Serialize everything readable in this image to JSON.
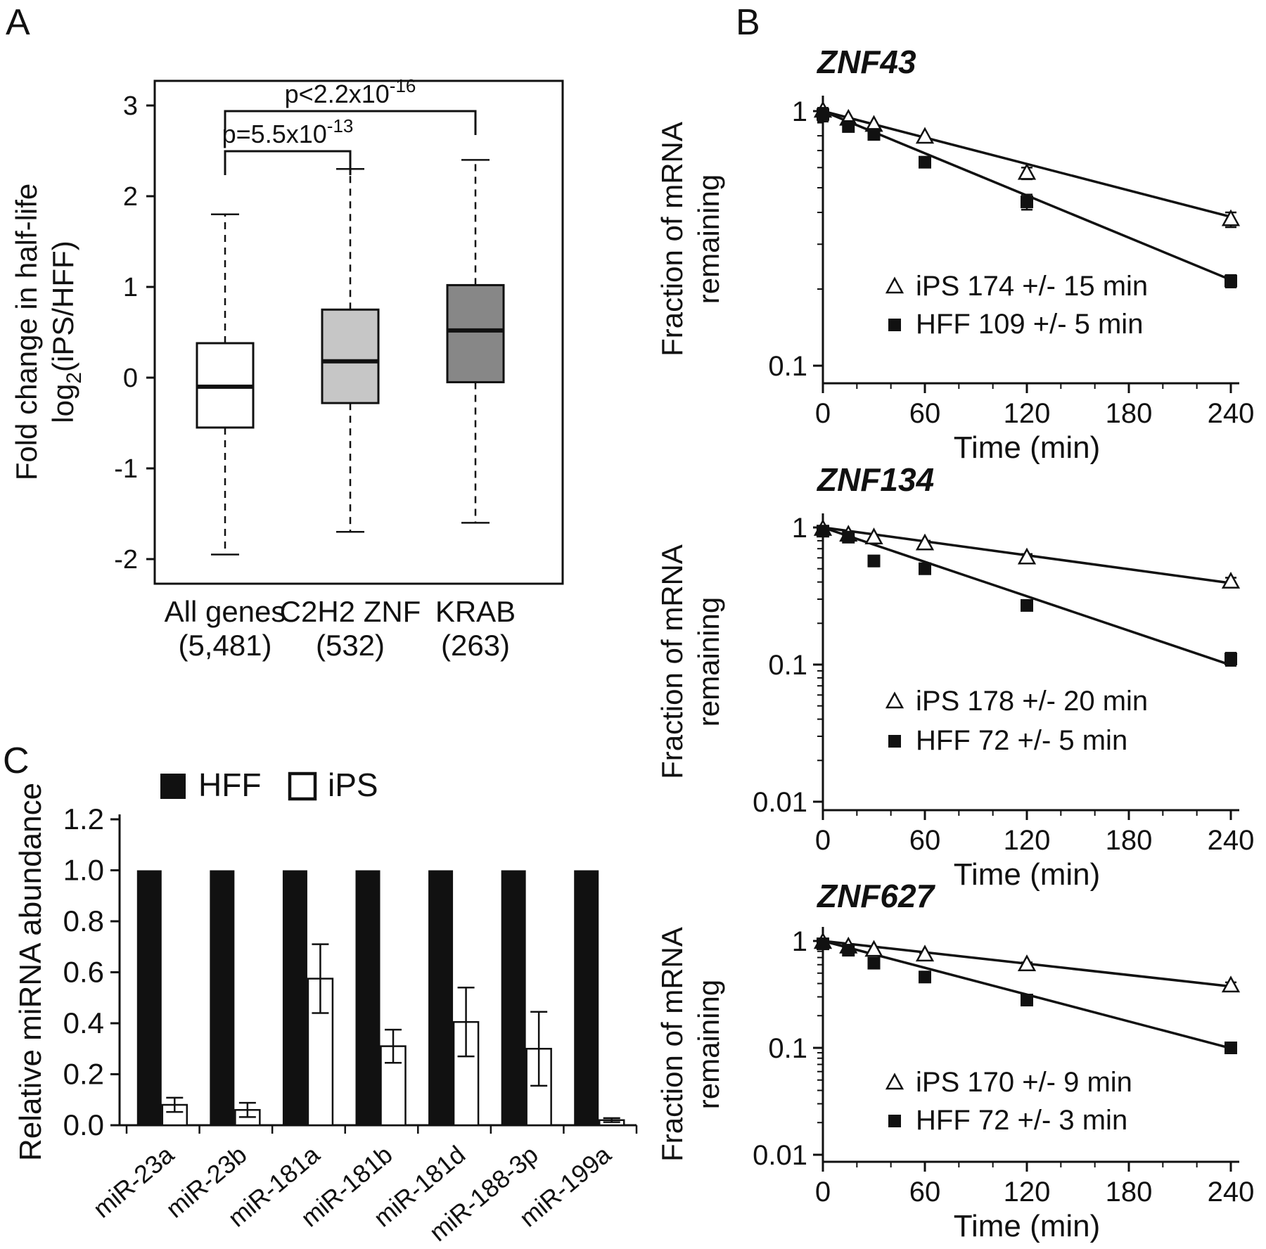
{
  "figure": {
    "background": "#ffffff",
    "line_color": "#111111"
  },
  "panels": {
    "a": {
      "label": "A"
    },
    "b": {
      "label": "B"
    },
    "c": {
      "label": "C"
    }
  },
  "chart_data": [
    {
      "panel": "A",
      "type": "boxplot",
      "ylabel_line1": "Fold change in half-life",
      "ylabel_line2_parts": [
        {
          "t": "log"
        },
        {
          "t": "2",
          "sub": true
        },
        {
          "t": "(iPS/HFF)"
        }
      ],
      "ylim": [
        -2.3,
        3.3
      ],
      "yticks": [
        3,
        2,
        1,
        0,
        -1,
        -2
      ],
      "groups": [
        {
          "label": "All genes",
          "n_label": "(5,481)",
          "whisker_low": -1.95,
          "q1": -0.55,
          "median": -0.1,
          "q3": 0.38,
          "whisker_high": 1.8,
          "fill": "#ffffff"
        },
        {
          "label": "C2H2 ZNF",
          "n_label": "(532)",
          "whisker_low": -1.7,
          "q1": -0.28,
          "median": 0.18,
          "q3": 0.75,
          "whisker_high": 2.3,
          "fill": "#c6c6c6"
        },
        {
          "label": "KRAB",
          "n_label": "(263)",
          "whisker_low": -1.6,
          "q1": -0.05,
          "median": 0.52,
          "q3": 1.02,
          "whisker_high": 2.4,
          "fill": "#878787"
        }
      ],
      "brackets": [
        {
          "from": 0,
          "to": 1,
          "label_parts": [
            {
              "t": "p=5.5x10"
            },
            {
              "t": "-13",
              "sup": true
            }
          ]
        },
        {
          "from": 0,
          "to": 2,
          "label_parts": [
            {
              "t": "p<2.2x10"
            },
            {
              "t": "-16",
              "sup": true
            }
          ]
        }
      ]
    },
    {
      "panel": "B",
      "type": "line",
      "yscale": "log",
      "title": "ZNF43",
      "ylabel_line1": "Fraction of mRNA",
      "ylabel_line2": "remaining",
      "xlabel": "Time (min)",
      "xticks": [
        0,
        60,
        120,
        180,
        240
      ],
      "yticks": [
        "1",
        "0.1"
      ],
      "series": [
        {
          "name": "iPS",
          "label": "174 +/- 15 min",
          "half_life_min": 174,
          "marker": "triangle-open",
          "points": [
            [
              0,
              1.0,
              0
            ],
            [
              15,
              0.93,
              0
            ],
            [
              30,
              0.88,
              0
            ],
            [
              60,
              0.79,
              0
            ],
            [
              120,
              0.57,
              0.03
            ],
            [
              240,
              0.375,
              0.025
            ]
          ]
        },
        {
          "name": "HFF",
          "label": "109 +/- 5 min",
          "half_life_min": 109,
          "marker": "square-filled",
          "points": [
            [
              0,
              0.97,
              0.06
            ],
            [
              15,
              0.87,
              0
            ],
            [
              30,
              0.81,
              0
            ],
            [
              60,
              0.63,
              0
            ],
            [
              120,
              0.44,
              0.03
            ],
            [
              240,
              0.215,
              0.012
            ]
          ]
        }
      ]
    },
    {
      "panel": "B",
      "type": "line",
      "yscale": "log",
      "title": "ZNF134",
      "ylabel_line1": "Fraction of mRNA",
      "ylabel_line2": "remaining",
      "xlabel": "Time (min)",
      "xticks": [
        0,
        60,
        120,
        180,
        240
      ],
      "yticks": [
        "1",
        "0.1",
        "0.01"
      ],
      "series": [
        {
          "name": "iPS",
          "label": "178 +/- 20 min",
          "half_life_min": 178,
          "marker": "triangle-open",
          "points": [
            [
              0,
              0.97,
              0
            ],
            [
              15,
              0.88,
              0
            ],
            [
              30,
              0.84,
              0
            ],
            [
              60,
              0.76,
              0.04
            ],
            [
              120,
              0.6,
              0.04
            ],
            [
              240,
              0.4,
              0.03
            ]
          ]
        },
        {
          "name": "HFF",
          "label": "72 +/- 5 min",
          "half_life_min": 72,
          "marker": "square-filled",
          "points": [
            [
              0,
              0.94,
              0.08
            ],
            [
              15,
              0.85,
              0
            ],
            [
              30,
              0.57,
              0.05
            ],
            [
              60,
              0.5,
              0.04
            ],
            [
              120,
              0.27,
              0.02
            ],
            [
              240,
              0.11,
              0.012
            ]
          ]
        }
      ]
    },
    {
      "panel": "B",
      "type": "line",
      "yscale": "log",
      "title": "ZNF627",
      "ylabel_line1": "Fraction of mRNA",
      "ylabel_line2": "remaining",
      "xlabel": "Time (min)",
      "xticks": [
        0,
        60,
        120,
        180,
        240
      ],
      "yticks": [
        "1",
        "0.1",
        "0.01"
      ],
      "series": [
        {
          "name": "iPS",
          "label": "170 +/- 9 min",
          "half_life_min": 170,
          "marker": "triangle-open",
          "points": [
            [
              0,
              0.97,
              0
            ],
            [
              15,
              0.88,
              0
            ],
            [
              30,
              0.82,
              0
            ],
            [
              60,
              0.74,
              0.03
            ],
            [
              120,
              0.6,
              0.03
            ],
            [
              240,
              0.38,
              0.03
            ]
          ]
        },
        {
          "name": "HFF",
          "label": "72 +/- 3 min",
          "half_life_min": 72,
          "marker": "square-filled",
          "points": [
            [
              0,
              0.94,
              0.06
            ],
            [
              15,
              0.82,
              0
            ],
            [
              30,
              0.62,
              0.04
            ],
            [
              60,
              0.46,
              0.03
            ],
            [
              120,
              0.28,
              0.02
            ],
            [
              240,
              0.1,
              0.01
            ]
          ]
        }
      ]
    },
    {
      "panel": "C",
      "type": "bar",
      "ylabel": "Relative miRNA abundance",
      "ylim": [
        0,
        1.2
      ],
      "ytick_labels": [
        "0.0",
        "0.2",
        "0.4",
        "0.6",
        "0.8",
        "1.0",
        "1.2"
      ],
      "categories": [
        "miR-23a",
        "miR-23b",
        "miR-181a",
        "miR-181b",
        "miR-181d",
        "miR-188-3p",
        "miR-199a"
      ],
      "series": [
        {
          "name": "HFF",
          "fill": "#111111",
          "values": [
            1,
            1,
            1,
            1,
            1,
            1,
            1
          ],
          "errors": [
            0,
            0,
            0,
            0,
            0,
            0,
            0
          ]
        },
        {
          "name": "iPS",
          "fill": "#ffffff",
          "values": [
            0.08,
            0.06,
            0.575,
            0.31,
            0.405,
            0.3,
            0.02
          ],
          "errors": [
            0.028,
            0.028,
            0.135,
            0.065,
            0.135,
            0.145,
            0.008
          ]
        }
      ],
      "legend": [
        {
          "label": "HFF",
          "fill": "#111111"
        },
        {
          "label": "iPS",
          "fill": "#ffffff"
        }
      ]
    }
  ]
}
